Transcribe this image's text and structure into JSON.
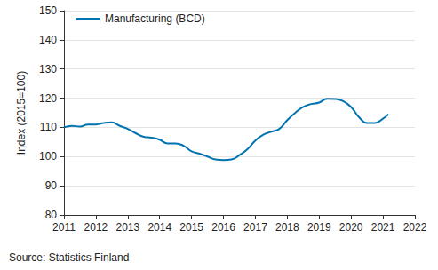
{
  "chart_data": {
    "type": "line",
    "y_label": "Index (2015=100)",
    "annotations": [
      "Source: Statistics Finland"
    ],
    "x": [
      2011.0,
      2011.25,
      2011.5,
      2011.75,
      2012.0,
      2012.25,
      2012.5,
      2012.75,
      2013.0,
      2013.25,
      2013.5,
      2013.75,
      2014.0,
      2014.25,
      2014.5,
      2014.75,
      2015.0,
      2015.25,
      2015.5,
      2015.75,
      2016.0,
      2016.25,
      2016.5,
      2016.75,
      2017.0,
      2017.25,
      2017.5,
      2017.75,
      2018.0,
      2018.25,
      2018.5,
      2018.75,
      2019.0,
      2019.25,
      2019.5,
      2019.75,
      2020.0,
      2020.25,
      2020.5,
      2020.75,
      2021.0,
      2021.17
    ],
    "series": [
      {
        "name": "Manufacturing (BCD)",
        "color": "#0073b0",
        "values": [
          110,
          110.5,
          110.3,
          111,
          111,
          111.5,
          111.7,
          110.5,
          109.5,
          108,
          106.8,
          106.5,
          105.8,
          104.5,
          104.5,
          103.7,
          101.8,
          101,
          100,
          99,
          98.8,
          99,
          100.5,
          102.5,
          105.5,
          107.5,
          108.5,
          109.5,
          112.5,
          115,
          117,
          118,
          118.5,
          119.8,
          119.7,
          119,
          117,
          113.5,
          111.5,
          111.5,
          113,
          114.5
        ]
      }
    ],
    "xlim": [
      2011,
      2022
    ],
    "xticks": [
      2011,
      2012,
      2013,
      2014,
      2015,
      2016,
      2017,
      2018,
      2019,
      2020,
      2021,
      2022
    ],
    "ylim": [
      80,
      150
    ],
    "yticks": [
      80,
      90,
      100,
      110,
      120,
      130,
      140,
      150
    ],
    "grid": true,
    "legend": "top-left"
  }
}
